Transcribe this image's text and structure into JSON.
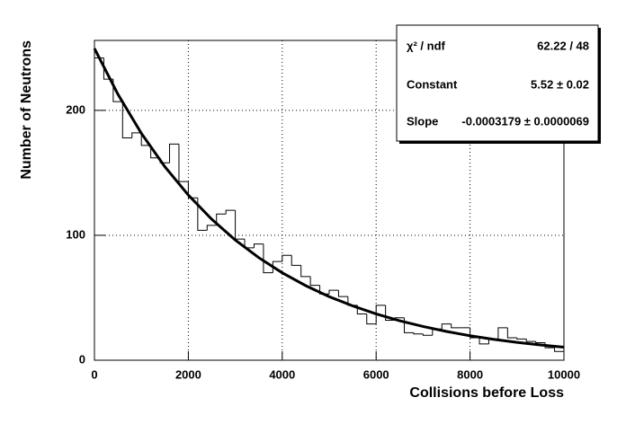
{
  "chart_data": {
    "type": "histogram",
    "xlabel": "Collisions before Loss",
    "ylabel": "Number of Neutrons",
    "bins": [
      0,
      200,
      400,
      600,
      800,
      1000,
      1200,
      1400,
      1600,
      1800,
      2000,
      2200,
      2400,
      2600,
      2800,
      3000,
      3200,
      3400,
      3600,
      3800,
      4000,
      4200,
      4400,
      4600,
      4800,
      5000,
      5200,
      5400,
      5600,
      5800,
      6000,
      6200,
      6400,
      6600,
      6800,
      7000,
      7200,
      7400,
      7600,
      7800,
      8000,
      8200,
      8400,
      8600,
      8800,
      9000,
      9200,
      9400,
      9600,
      9800,
      10000
    ],
    "values": [
      242,
      225,
      207,
      178,
      182,
      172,
      162,
      158,
      173,
      143,
      130,
      104,
      108,
      117,
      120,
      97,
      90,
      93,
      70,
      79,
      84,
      76,
      67,
      60,
      53,
      56,
      51,
      44,
      37,
      29,
      44,
      32,
      34,
      22,
      21,
      20,
      25,
      29,
      26,
      26,
      18,
      13,
      17,
      26,
      18,
      17,
      15,
      14,
      10,
      7
    ],
    "fit": {
      "x": [
        0,
        500,
        1000,
        1500,
        2000,
        2500,
        3000,
        3500,
        4000,
        4500,
        5000,
        5500,
        6000,
        6500,
        7000,
        7500,
        8000,
        8500,
        9000,
        9500,
        10000
      ],
      "values": [
        249.6,
        212.9,
        181.6,
        154.9,
        132.2,
        112.8,
        96.2,
        82.1,
        70.0,
        59.7,
        50.9,
        43.5,
        37.1,
        31.6,
        27.0,
        23.0,
        19.6,
        16.7,
        14.3,
        12.2,
        10.4
      ]
    },
    "stats": [
      [
        "χ² / ndf",
        "62.22 / 48"
      ],
      [
        "Constant",
        "5.52 ± 0.02"
      ],
      [
        "Slope",
        "-0.0003179 ± 0.0000069"
      ]
    ],
    "xlim": [
      0,
      10000
    ],
    "ylim": [
      0,
      256
    ],
    "xticks": [
      0,
      2000,
      4000,
      6000,
      8000,
      10000
    ],
    "yticks": [
      0,
      100,
      200
    ],
    "grid": true
  }
}
